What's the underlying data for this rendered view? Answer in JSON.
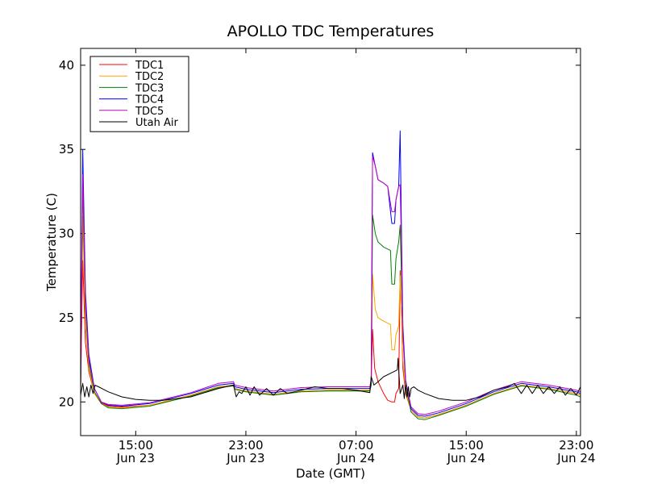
{
  "chart_data": {
    "type": "line",
    "title": "APOLLO TDC Temperatures",
    "xlabel": "Date (GMT)",
    "ylabel": "Temperature (C)",
    "x_unit": "hours since Jun 23 11:00 GMT",
    "xlim": [
      0,
      36.3
    ],
    "ylim": [
      18,
      41
    ],
    "grid": false,
    "legend_position": "top-left",
    "y_ticks": [
      20,
      25,
      30,
      35,
      40
    ],
    "y_tick_labels": [
      "20",
      "25",
      "30",
      "35",
      "40"
    ],
    "x_ticks": [
      {
        "x": 4,
        "time": "15:00",
        "date": "Jun 23"
      },
      {
        "x": 12,
        "time": "23:00",
        "date": "Jun 23"
      },
      {
        "x": 20,
        "time": "07:00",
        "date": "Jun 24"
      },
      {
        "x": 28,
        "time": "15:00",
        "date": "Jun 24"
      },
      {
        "x": 36,
        "time": "23:00",
        "date": "Jun 24"
      }
    ],
    "series": [
      {
        "name": "TDC1",
        "color": "#ff0000",
        "legend_label": "TDC1",
        "x": [
          0,
          0.15,
          0.35,
          0.6,
          1,
          1.5,
          2,
          3,
          5,
          8,
          10,
          11.1,
          11.2,
          12,
          14,
          16,
          18,
          20,
          21,
          21.1,
          21.2,
          21.35,
          21.6,
          22,
          22.3,
          22.6,
          22.8,
          22.9,
          23.1,
          23.2,
          23.4,
          23.6,
          24,
          24.5,
          25,
          26,
          28,
          30,
          32,
          34,
          36,
          36.3
        ],
        "y": [
          20.6,
          28.4,
          23.5,
          21.8,
          20.5,
          19.95,
          19.75,
          19.7,
          19.8,
          20.4,
          20.9,
          21.0,
          20.8,
          20.65,
          20.45,
          20.65,
          20.7,
          20.7,
          20.7,
          21.0,
          24.3,
          22.0,
          21.2,
          20.5,
          20.1,
          20.0,
          20.0,
          20.5,
          20.8,
          27.8,
          22.0,
          20.5,
          19.5,
          19.1,
          19.05,
          19.25,
          19.8,
          20.5,
          21.0,
          20.8,
          20.5,
          20.4
        ]
      },
      {
        "name": "TDC2",
        "color": "#ffa500",
        "legend_label": "TDC2",
        "x": [
          0,
          0.15,
          0.35,
          0.6,
          1,
          1.5,
          2,
          3,
          5,
          8,
          10,
          11.1,
          11.2,
          12,
          14,
          16,
          18,
          20,
          21,
          21.1,
          21.2,
          21.4,
          21.6,
          22,
          22.5,
          22.6,
          22.8,
          22.9,
          23.1,
          23.2,
          23.4,
          23.6,
          24,
          24.5,
          25,
          26,
          28,
          30,
          32,
          34,
          36,
          36.3
        ],
        "y": [
          20.8,
          31.0,
          24.5,
          22.0,
          20.5,
          19.9,
          19.7,
          19.65,
          19.8,
          20.4,
          20.9,
          21.0,
          20.8,
          20.65,
          20.45,
          20.65,
          20.7,
          20.7,
          20.7,
          21.0,
          27.6,
          25.5,
          25.0,
          24.8,
          24.6,
          23.1,
          23.1,
          24.0,
          24.5,
          27.5,
          22.5,
          20.6,
          19.5,
          19.1,
          19.05,
          19.25,
          19.8,
          20.5,
          21.0,
          20.8,
          20.5,
          20.4
        ]
      },
      {
        "name": "TDC3",
        "color": "#008000",
        "legend_label": "TDC3",
        "x": [
          0,
          0.15,
          0.35,
          0.6,
          1,
          1.5,
          2,
          3,
          5,
          8,
          10,
          11.1,
          11.2,
          12,
          14,
          16,
          18,
          20,
          21,
          21.1,
          21.2,
          21.4,
          21.6,
          22,
          22.5,
          22.6,
          22.8,
          22.9,
          23.1,
          23.2,
          23.4,
          23.6,
          24,
          24.5,
          25,
          26,
          28,
          30,
          32,
          34,
          36,
          36.3
        ],
        "y": [
          20.8,
          33.0,
          25.5,
          22.3,
          20.6,
          19.9,
          19.65,
          19.6,
          19.75,
          20.35,
          20.85,
          20.95,
          20.75,
          20.6,
          20.4,
          20.6,
          20.65,
          20.65,
          20.65,
          21.0,
          31.1,
          30.0,
          29.5,
          29.2,
          29.0,
          27.0,
          27.0,
          28.5,
          29.5,
          30.5,
          24.0,
          21.0,
          19.4,
          19.0,
          18.95,
          19.2,
          19.75,
          20.45,
          20.95,
          20.75,
          20.4,
          20.3
        ]
      },
      {
        "name": "TDC4",
        "color": "#0000ff",
        "legend_label": "TDC4",
        "x": [
          0,
          0.15,
          0.35,
          0.6,
          1,
          1.5,
          2,
          3,
          5,
          8,
          10,
          11.1,
          11.2,
          12,
          14,
          16,
          18,
          20,
          21,
          21.1,
          21.2,
          21.4,
          21.6,
          22,
          22.3,
          22.6,
          22.8,
          22.9,
          23.1,
          23.2,
          23.3,
          23.4,
          23.6,
          24,
          24.5,
          25,
          26,
          28,
          30,
          32,
          34,
          36,
          36.3
        ],
        "y": [
          21.0,
          35.0,
          26.5,
          22.8,
          20.8,
          20.0,
          19.8,
          19.75,
          19.9,
          20.5,
          21.0,
          21.1,
          20.9,
          20.75,
          20.55,
          20.75,
          20.8,
          20.8,
          20.8,
          21.2,
          34.8,
          34.0,
          33.2,
          33.0,
          32.8,
          30.6,
          30.6,
          32.0,
          32.8,
          36.1,
          30.0,
          24.5,
          21.3,
          19.6,
          19.2,
          19.15,
          19.35,
          19.9,
          20.6,
          21.1,
          20.9,
          20.6,
          20.5
        ]
      },
      {
        "name": "TDC5",
        "color": "#bf00bf",
        "legend_label": "TDC5",
        "x": [
          0,
          0.15,
          0.35,
          0.6,
          1,
          1.5,
          2,
          3,
          5,
          8,
          10,
          11.1,
          11.2,
          12,
          14,
          16,
          18,
          20,
          21,
          21.1,
          21.2,
          21.4,
          21.6,
          22,
          22.3,
          22.6,
          22.8,
          22.9,
          23.1,
          23.2,
          23.3,
          23.4,
          23.6,
          24,
          24.5,
          25,
          26,
          28,
          30,
          32,
          34,
          36,
          36.3
        ],
        "y": [
          21.0,
          33.5,
          26.0,
          22.5,
          20.8,
          20.0,
          19.85,
          19.8,
          19.95,
          20.55,
          21.1,
          21.2,
          21.0,
          20.85,
          20.65,
          20.85,
          20.9,
          20.9,
          20.9,
          21.3,
          34.6,
          34.0,
          33.2,
          33.0,
          32.8,
          31.3,
          31.3,
          32.0,
          32.8,
          32.9,
          29.0,
          24.0,
          21.2,
          19.7,
          19.3,
          19.25,
          19.45,
          20.0,
          20.7,
          21.2,
          21.0,
          20.7,
          20.6
        ]
      },
      {
        "name": "Utah Air",
        "color": "#000000",
        "legend_label": "Utah Air",
        "x": [
          0,
          0.15,
          0.3,
          0.45,
          0.6,
          0.75,
          0.9,
          1.05,
          1.3,
          2,
          3,
          4,
          5,
          6,
          8,
          10,
          11.1,
          11.3,
          11.5,
          11.7,
          12,
          12.3,
          12.6,
          13,
          13.5,
          14,
          14.5,
          15,
          16,
          17,
          18,
          19,
          20,
          21,
          21.1,
          21.3,
          21.6,
          22,
          22.5,
          23,
          23.05,
          23.2,
          23.4,
          23.5,
          23.6,
          23.7,
          23.8,
          23.9,
          24.0,
          24.2,
          24.5,
          25,
          26,
          27,
          28,
          29,
          30,
          31,
          31.5,
          32,
          32.4,
          32.8,
          33.2,
          33.6,
          34.0,
          34.4,
          34.8,
          35.2,
          35.6,
          36.0,
          36.3
        ],
        "y": [
          20.4,
          21.1,
          20.3,
          20.9,
          20.3,
          21.0,
          20.5,
          21.0,
          20.9,
          20.6,
          20.3,
          20.15,
          20.1,
          20.1,
          20.3,
          20.8,
          21.0,
          20.3,
          20.6,
          20.5,
          20.9,
          20.4,
          20.9,
          20.4,
          20.8,
          20.4,
          20.8,
          20.5,
          20.7,
          20.9,
          20.8,
          20.8,
          20.7,
          20.55,
          21.5,
          21.0,
          21.2,
          21.5,
          21.7,
          21.9,
          22.6,
          20.5,
          21.0,
          20.2,
          21.0,
          20.3,
          20.9,
          20.3,
          20.8,
          20.9,
          20.7,
          20.5,
          20.2,
          20.1,
          20.1,
          20.3,
          20.7,
          20.9,
          21.1,
          20.5,
          21.0,
          20.5,
          21.0,
          20.5,
          20.9,
          20.5,
          20.9,
          20.4,
          20.8,
          20.4,
          20.9
        ]
      }
    ]
  }
}
